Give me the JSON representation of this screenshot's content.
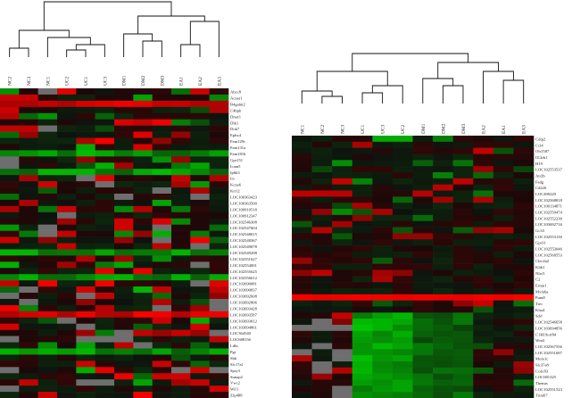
{
  "left_heatmap": {
    "samples": [
      "NC2",
      "NC3",
      "NC1",
      "UC2",
      "UC1",
      "UC3",
      "DM1",
      "DM2",
      "DM3",
      "EA1",
      "EA2",
      "EA3"
    ],
    "genes": [
      "Abcc8",
      "Acnat1",
      "B4galnt2",
      "C4bpb",
      "Dmrt1",
      "Dlk1",
      "Dok7",
      "Ephx4",
      "Fam129c",
      "Fam131a",
      "Fam181b",
      "Gpr151",
      "Icam5",
      "Ip6k3",
      "Irs",
      "Kcna6",
      "Krt12",
      "LOC100363423",
      "LOC100363500",
      "LOC100910518",
      "LOC100912347",
      "LOC102546308",
      "LOC102547604",
      "LOC102548015",
      "LOC102548367",
      "LOC102549078",
      "LOC102549298",
      "LOC102551627",
      "LOC102554001",
      "LOC102555625",
      "LOC102556612",
      "LOC103690081",
      "LOC103690837",
      "LOC103692608",
      "LOC103692806",
      "LOC103693428",
      "LOC103693587",
      "LOC103693812",
      "LOC103694861",
      "LOC364540",
      "LOC688156",
      "Ldhc",
      "Pgr",
      "Shh",
      "Slc17a1",
      "Spry3",
      "Sunap2",
      "Vwc2",
      "Wif1",
      "Zfp488"
    ]
  },
  "right_heatmap": {
    "samples": [
      "NC1",
      "NC2",
      "NC3",
      "UC1",
      "UC3",
      "UC2",
      "DM1",
      "DM2",
      "DM3",
      "EA2",
      "EA1",
      "EA3"
    ],
    "genes": [
      "Cdip2",
      "Ccl4",
      "Olr1587",
      "Il12rb1",
      "H19",
      "LOC102553537",
      "Atr2b",
      "Fadg",
      "Cd226",
      "LOC499229",
      "LOC102568818",
      "LOC100134871",
      "LOC102559474",
      "LOC102552230",
      "LOC103692716",
      "Gc33",
      "LOC102553130",
      "Gpr31",
      "LOC102553046",
      "LOC102568553",
      "Clec4a2",
      "Klrk1",
      "Nlrc5",
      "C2",
      "Ermn1",
      "Mvfa6a",
      "Pum8",
      "Trec",
      "Klra4",
      "Sdrl",
      "LOC102546658",
      "LOC103694856",
      "C1H19orf84",
      "Wnt3",
      "LOC102567556",
      "LOC102551687",
      "Mofa1c",
      "Slc37a8",
      "Ccdc83",
      "LOC681325",
      "Themis",
      "LOC102551523",
      "Trim67"
    ]
  }
}
